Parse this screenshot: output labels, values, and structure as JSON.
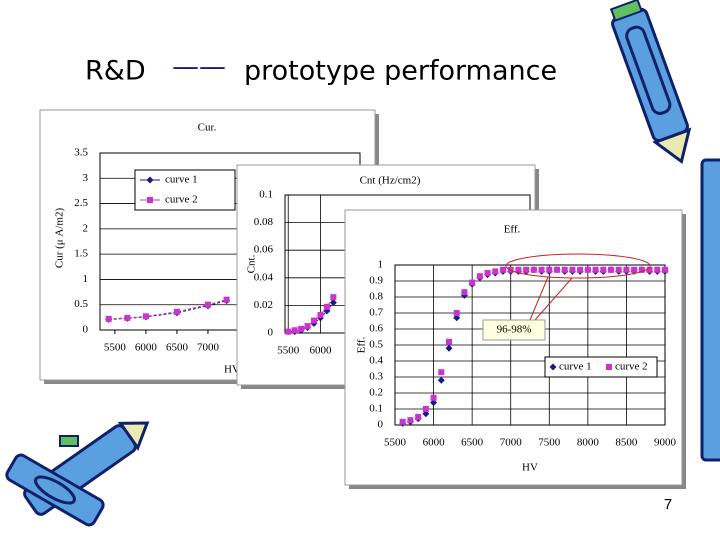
{
  "title": {
    "lead": "R&D",
    "dash": "——",
    "rest": "prototype performance"
  },
  "page_number": "7",
  "chart_data": [
    {
      "type": "line",
      "title": "Cur.",
      "xlabel": "HV",
      "ylabel": "Cur (μ A/m2)",
      "xlim": [
        5260,
        9450
      ],
      "ylim": [
        0,
        3.5
      ],
      "xticks": [
        5500,
        6000,
        6500,
        7000
      ],
      "yticks": [
        0,
        0.5,
        1,
        1.5,
        2,
        2.5,
        3,
        3.5
      ],
      "grid": "y",
      "legend": "upper left",
      "x": [
        5400,
        5700,
        6000,
        6500,
        7000,
        7300
      ],
      "series": [
        {
          "name": "curve 1",
          "color": "#1a1a80",
          "marker": "diamond",
          "values": [
            0.21,
            0.23,
            0.26,
            0.34,
            0.48,
            0.58
          ]
        },
        {
          "name": "curve 2",
          "color": "#cc33cc",
          "marker": "square",
          "values": [
            0.22,
            0.24,
            0.27,
            0.36,
            0.5,
            0.6
          ]
        }
      ]
    },
    {
      "type": "line",
      "title": "Cnt (Hz/cm2)",
      "ylabel": "Cnt.",
      "xlim": [
        5450,
        9250
      ],
      "ylim": [
        0,
        0.1
      ],
      "xticks": [
        5500,
        6000
      ],
      "yticks": [
        0,
        0.02,
        0.04,
        0.06,
        0.08,
        0.1
      ],
      "grid": "both",
      "x": [
        5500,
        5600,
        5700,
        5800,
        5900,
        6000,
        6100,
        6200
      ],
      "series": [
        {
          "name": "curve 1",
          "color": "#1a1a80",
          "marker": "diamond",
          "values": [
            0.001,
            0.001,
            0.002,
            0.004,
            0.007,
            0.011,
            0.016,
            0.022
          ]
        },
        {
          "name": "curve 2",
          "color": "#cc33cc",
          "marker": "square",
          "values": [
            0.001,
            0.002,
            0.003,
            0.005,
            0.009,
            0.013,
            0.019,
            0.026
          ]
        }
      ]
    },
    {
      "type": "scatter",
      "title": "Eff.",
      "xlabel": "HV",
      "ylabel": "Eff.",
      "annotation": "96-98%",
      "xlim": [
        5500,
        9000
      ],
      "ylim": [
        0,
        1
      ],
      "xticks": [
        5500,
        6000,
        6500,
        7000,
        7500,
        8000,
        8500,
        9000
      ],
      "yticks": [
        0,
        0.1,
        0.2,
        0.3,
        0.4,
        0.5,
        0.6,
        0.7,
        0.8,
        0.9,
        1
      ],
      "grid": "both",
      "legend": "lower right",
      "x": [
        5600,
        5700,
        5800,
        5900,
        6000,
        6100,
        6200,
        6300,
        6400,
        6500,
        6600,
        6700,
        6800,
        6900,
        7000,
        7100,
        7200,
        7300,
        7400,
        7500,
        7600,
        7700,
        7800,
        7900,
        8000,
        8100,
        8200,
        8300,
        8400,
        8500,
        8600,
        8700,
        8800,
        8900,
        9000
      ],
      "series": [
        {
          "name": "curve 1",
          "color": "#1a1a80",
          "marker": "diamond",
          "values": [
            0.01,
            0.02,
            0.04,
            0.07,
            0.14,
            0.28,
            0.48,
            0.67,
            0.81,
            0.88,
            0.92,
            0.94,
            0.95,
            0.96,
            0.96,
            0.96,
            0.96,
            0.97,
            0.96,
            0.96,
            0.97,
            0.96,
            0.96,
            0.96,
            0.97,
            0.96,
            0.96,
            0.97,
            0.96,
            0.96,
            0.96,
            0.97,
            0.96,
            0.96,
            0.96
          ]
        },
        {
          "name": "curve 2",
          "color": "#cc33cc",
          "marker": "square",
          "values": [
            0.02,
            0.03,
            0.05,
            0.1,
            0.17,
            0.33,
            0.52,
            0.7,
            0.83,
            0.89,
            0.93,
            0.95,
            0.96,
            0.97,
            0.97,
            0.97,
            0.97,
            0.97,
            0.97,
            0.97,
            0.97,
            0.97,
            0.97,
            0.97,
            0.97,
            0.97,
            0.97,
            0.97,
            0.97,
            0.97,
            0.97,
            0.97,
            0.97,
            0.97,
            0.97
          ]
        }
      ]
    }
  ]
}
